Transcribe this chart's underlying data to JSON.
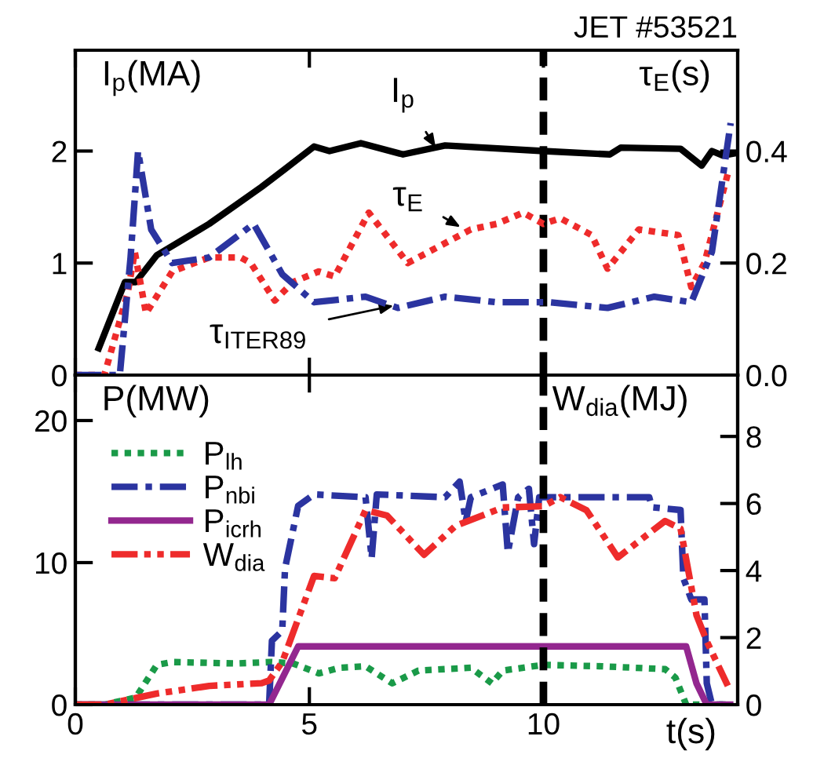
{
  "chart_data": [
    {
      "type": "line",
      "title": "JET #53521",
      "ylabel": "I$_{p}$(MA)",
      "y2label": "τ$_{E}$(s)",
      "xlim": [
        0,
        14.15
      ],
      "xticks": [
        {
          "value": 0,
          "label": null
        },
        {
          "value": 5,
          "label": null
        },
        {
          "value": 10,
          "label": null
        }
      ],
      "ylim": [
        0,
        2.9
      ],
      "yticks": [
        0,
        1,
        2
      ],
      "y2lim": [
        0,
        0.58
      ],
      "y2ticks": [
        {
          "value": 0,
          "label": "0.0"
        },
        0.2,
        0.4
      ],
      "tick_labels": "y",
      "grid": false,
      "legend": false,
      "ref_lines": [
        {
          "axis": "x",
          "value": 10,
          "color": "#000000",
          "line_style": "dashed"
        }
      ],
      "annotations": [
        {
          "text": "I$_{p}$",
          "x": 7.7,
          "y": 2.03
        },
        {
          "text": "τ$_{E}$",
          "x": 8.23,
          "y": 1.32
        },
        {
          "text": "τ$_{ITER89}$",
          "x": 6.8,
          "y": 0.62
        }
      ],
      "series": [
        {
          "color": "#000000",
          "line_style": "solid",
          "x": [
            0.5,
            1.06,
            1.29,
            1.74,
            2.86,
            3.98,
            4.48,
            5.1,
            5.43,
            6.1,
            7.0,
            7.9,
            10,
            11.42,
            11.65,
            12.93,
            13.38,
            13.6,
            13.83,
            14.1
          ],
          "values": [
            0.24,
            0.83,
            0.83,
            1.07,
            1.35,
            1.68,
            1.84,
            2.04,
            2.0,
            2.07,
            1.97,
            2.05,
            2.0,
            1.97,
            2.03,
            2.02,
            1.87,
            2.0,
            1.96,
            1.98
          ]
        },
        {
          "color": "#ee2b2b",
          "line_style": "dotted",
          "axis": "y2",
          "x": [
            0,
            0.62,
            1.12,
            1.27,
            1.51,
            2.07,
            2.86,
            3.53,
            3.75,
            4.26,
            4.65,
            5.2,
            5.54,
            6.27,
            7.1,
            8.0,
            8.45,
            9.0,
            9.57,
            10,
            10.36,
            11.03,
            11.37,
            12.04,
            12.88,
            13.16,
            13.44,
            13.94
          ],
          "values": [
            0,
            0,
            0.147,
            0.22,
            0.11,
            0.185,
            0.21,
            0.21,
            0.2,
            0.133,
            0.166,
            0.185,
            0.176,
            0.29,
            0.2,
            0.24,
            0.26,
            0.27,
            0.29,
            0.27,
            0.28,
            0.25,
            0.19,
            0.26,
            0.25,
            0.157,
            0.2,
            0.36
          ]
        },
        {
          "color": "#2b34a0",
          "line_style": "dashdot",
          "axis": "y2",
          "x": [
            0,
            0.95,
            1.18,
            1.34,
            1.62,
            2.07,
            2.86,
            3.81,
            4.42,
            5.1,
            6.2,
            6.89,
            7.9,
            9.0,
            10.13,
            11.37,
            12.37,
            13.16,
            13.6,
            14.0
          ],
          "values": [
            0,
            0,
            0.21,
            0.4,
            0.26,
            0.2,
            0.21,
            0.27,
            0.18,
            0.13,
            0.14,
            0.12,
            0.14,
            0.13,
            0.13,
            0.12,
            0.14,
            0.13,
            0.22,
            0.45
          ]
        }
      ]
    },
    {
      "type": "line",
      "ylabel": "P(MW)",
      "y2label": "W$_{dia}$(MJ)",
      "xlabel": "t(s)",
      "xlim": [
        0,
        14.15
      ],
      "xticks": [
        0,
        5,
        10
      ],
      "ylim": [
        0,
        23.2
      ],
      "yticks": [
        0,
        10,
        20
      ],
      "y2lim": [
        0,
        9.83
      ],
      "y2ticks": [
        0,
        2,
        4,
        6,
        8
      ],
      "grid": false,
      "legend": "top left",
      "ref_lines": [
        {
          "axis": "x",
          "value": 10,
          "color": "#000000",
          "line_style": "dashed"
        }
      ],
      "series": [
        {
          "name": "P$_{lh}$",
          "color": "#1a9a48",
          "line_style": "dotted",
          "x": [
            0,
            0.62,
            1.29,
            1.74,
            2.07,
            3.42,
            4.2,
            4.65,
            5.2,
            5.65,
            6.2,
            6.77,
            7.33,
            8.45,
            8.9,
            9.13,
            10,
            11.25,
            12.6,
            12.82,
            13.05,
            13.94
          ],
          "values": [
            0,
            0,
            0.5,
            2.8,
            3.0,
            2.9,
            3.0,
            2.9,
            2.2,
            2.6,
            2.7,
            1.5,
            2.4,
            2.6,
            1.5,
            2.4,
            2.8,
            2.7,
            2.5,
            1.9,
            0,
            0
          ]
        },
        {
          "name": "P$_{nbi}$",
          "color": "#2b34a0",
          "line_style": "dashdot",
          "x": [
            0,
            4.14,
            4.2,
            4.42,
            4.48,
            4.76,
            5.1,
            6.2,
            6.33,
            6.44,
            7.9,
            8.21,
            8.34,
            8.45,
            9.13,
            9.24,
            9.46,
            9.69,
            9.8,
            9.91,
            12.26,
            12.32,
            12.93,
            12.99,
            13.16,
            13.44,
            13.49,
            13.6,
            13.99
          ],
          "values": [
            0,
            0,
            4.5,
            5.2,
            9.6,
            14.0,
            14.8,
            14.6,
            10.3,
            14.8,
            14.6,
            15.7,
            12.9,
            14.6,
            15.5,
            10.7,
            14.6,
            15.2,
            11.3,
            14.6,
            14.6,
            13.9,
            13.7,
            8.9,
            7.4,
            7.4,
            1.5,
            0,
            0
          ]
        },
        {
          "name": "P$_{icrh}$",
          "color": "#93278f",
          "line_style": "solid",
          "x": [
            0,
            4.14,
            4.76,
            13.05,
            13.27,
            13.49,
            13.99
          ],
          "values": [
            0,
            0,
            4.1,
            4.1,
            1.5,
            0,
            0
          ]
        },
        {
          "name": "W$_{dia}$",
          "color": "#ee2b2b",
          "line_style": "dashdotdot",
          "axis": "y2",
          "x": [
            0,
            0.62,
            1.74,
            2.86,
            3.98,
            4.14,
            4.42,
            5.1,
            5.54,
            6.2,
            6.66,
            7.45,
            8.12,
            9.13,
            10,
            10.36,
            10.92,
            11.59,
            12.6,
            12.93,
            13.27,
            13.49,
            13.94
          ],
          "values": [
            0,
            0,
            0.33,
            0.56,
            0.64,
            0.72,
            1.27,
            3.84,
            3.77,
            5.8,
            5.64,
            4.47,
            5.33,
            5.88,
            5.92,
            6.19,
            5.8,
            4.39,
            5.48,
            5.25,
            2.67,
            1.89,
            0.56
          ]
        }
      ]
    }
  ]
}
